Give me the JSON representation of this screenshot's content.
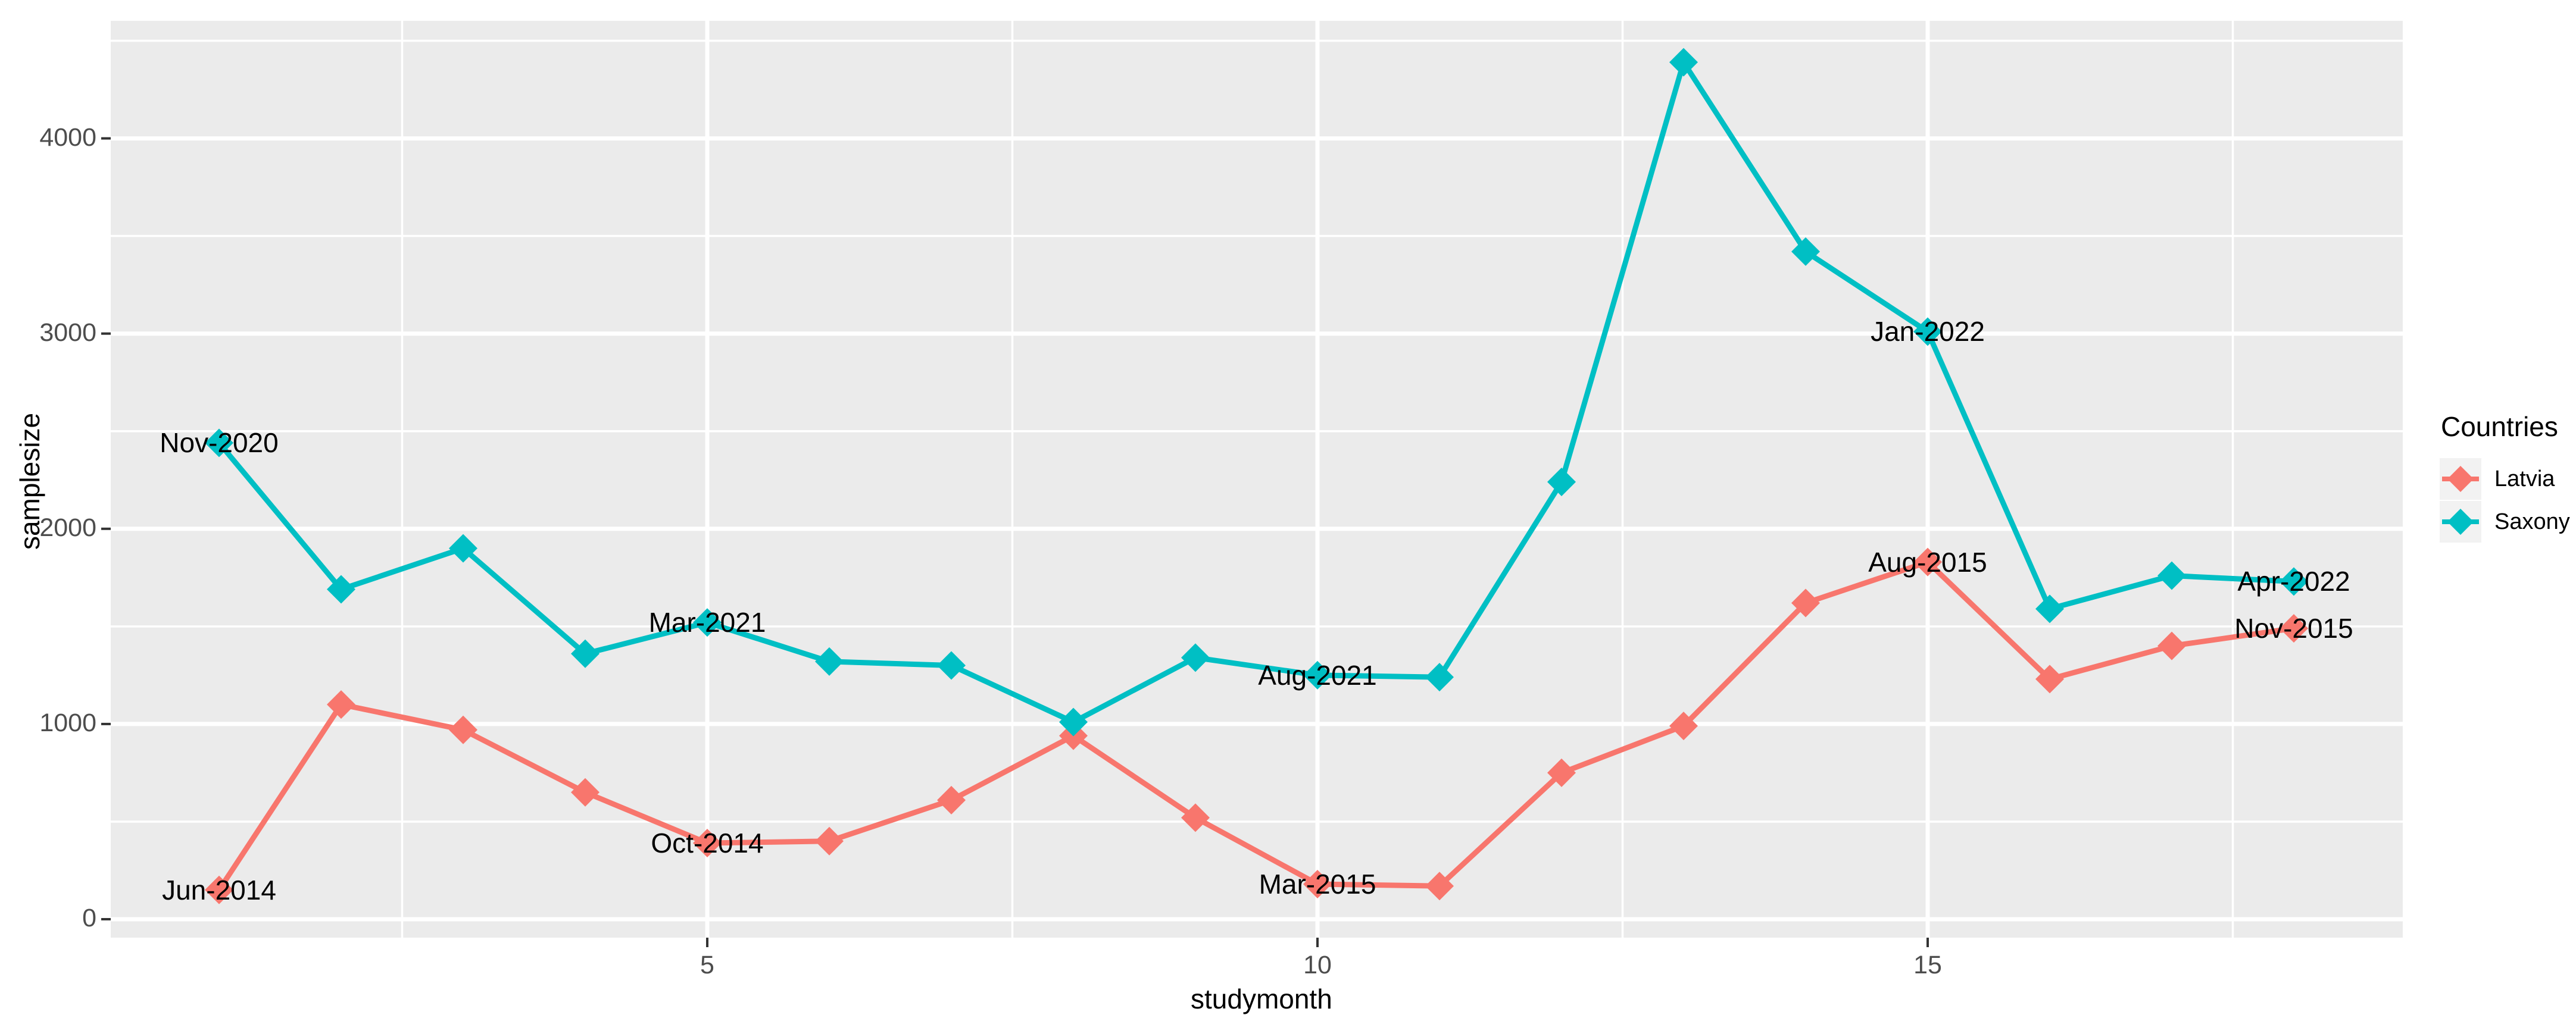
{
  "chart_data": {
    "type": "line",
    "x": [
      1,
      2,
      3,
      4,
      5,
      6,
      7,
      8,
      9,
      10,
      11,
      12,
      13,
      14,
      15,
      16,
      17,
      18
    ],
    "series": [
      {
        "name": "Latvia",
        "color": "#F8766D",
        "values": [
          150,
          1100,
          970,
          650,
          390,
          400,
          610,
          940,
          520,
          180,
          170,
          750,
          990,
          1620,
          1830,
          1230,
          1400,
          1490
        ]
      },
      {
        "name": "Saxony",
        "color": "#00BFC4",
        "values": [
          2440,
          1690,
          1900,
          1360,
          1520,
          1320,
          1300,
          1010,
          1340,
          1250,
          1240,
          2240,
          4390,
          3420,
          3010,
          1590,
          1760,
          1730
        ]
      }
    ],
    "annotations": [
      {
        "series": "Latvia",
        "month": 1,
        "label": "Jun-2014"
      },
      {
        "series": "Latvia",
        "month": 5,
        "label": "Oct-2014"
      },
      {
        "series": "Latvia",
        "month": 10,
        "label": "Mar-2015"
      },
      {
        "series": "Latvia",
        "month": 15,
        "label": "Aug-2015"
      },
      {
        "series": "Latvia",
        "month": 18,
        "label": "Nov-2015"
      },
      {
        "series": "Saxony",
        "month": 1,
        "label": "Nov-2020"
      },
      {
        "series": "Saxony",
        "month": 5,
        "label": "Mar-2021"
      },
      {
        "series": "Saxony",
        "month": 10,
        "label": "Aug-2021"
      },
      {
        "series": "Saxony",
        "month": 15,
        "label": "Jan-2022"
      },
      {
        "series": "Saxony",
        "month": 18,
        "label": "Apr-2022"
      }
    ],
    "title": "",
    "xlabel": "studymonth",
    "ylabel": "samplesize",
    "xticks": [
      5,
      10,
      15
    ],
    "yticks": [
      0,
      1000,
      2000,
      3000,
      4000
    ],
    "xlim": [
      0.15,
      18.85
    ],
    "ylim": [
      -90,
      4610
    ],
    "grid": "on",
    "legend_position": "right",
    "panel_background": "#EBEBEB",
    "grid_color": "#FFFFFF",
    "tick_color": "#333333",
    "tick_label_color": "#4D4D4D"
  },
  "legend": {
    "title": "Countries",
    "entries": [
      {
        "label": "Latvia",
        "color": "#F8766D"
      },
      {
        "label": "Saxony",
        "color": "#00BFC4"
      }
    ]
  }
}
